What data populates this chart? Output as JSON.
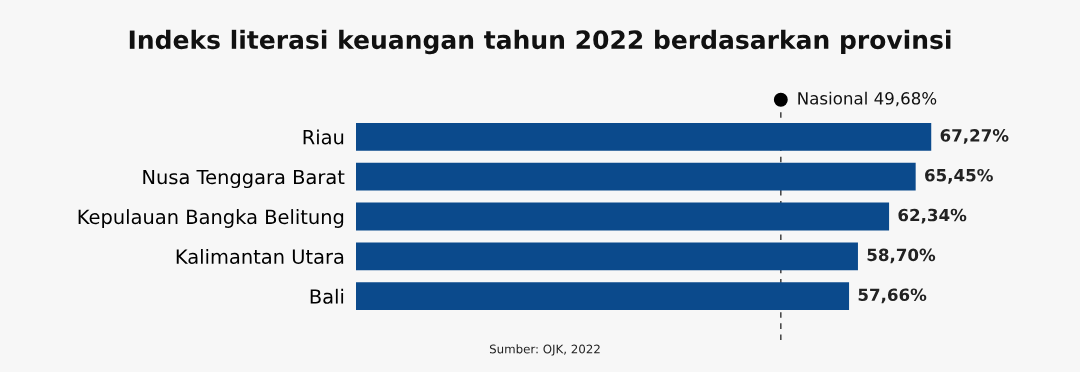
{
  "chart_data": {
    "type": "bar",
    "orientation": "horizontal",
    "title": "Indeks literasi keuangan tahun 2022 berdasarkan provinsi",
    "categories": [
      "Riau",
      "Nusa Tenggara Barat",
      "Kepulauan Bangka Belitung",
      "Kalimantan Utara",
      "Bali"
    ],
    "values": [
      67.27,
      65.45,
      62.34,
      58.7,
      57.66
    ],
    "value_labels": [
      "67,27%",
      "65,45%",
      "62,34%",
      "58,70%",
      "57,66%"
    ],
    "color": "#0b4a8c",
    "tick_labels": "y",
    "grid": false,
    "legend": false,
    "ref_lines": [
      {
        "axis": "x",
        "value": 49.68,
        "label": "Nasional 49,68%",
        "color": "#333333",
        "line_style": "dashed"
      }
    ],
    "annotations": [
      "Sumber: OJK, 2022"
    ]
  }
}
